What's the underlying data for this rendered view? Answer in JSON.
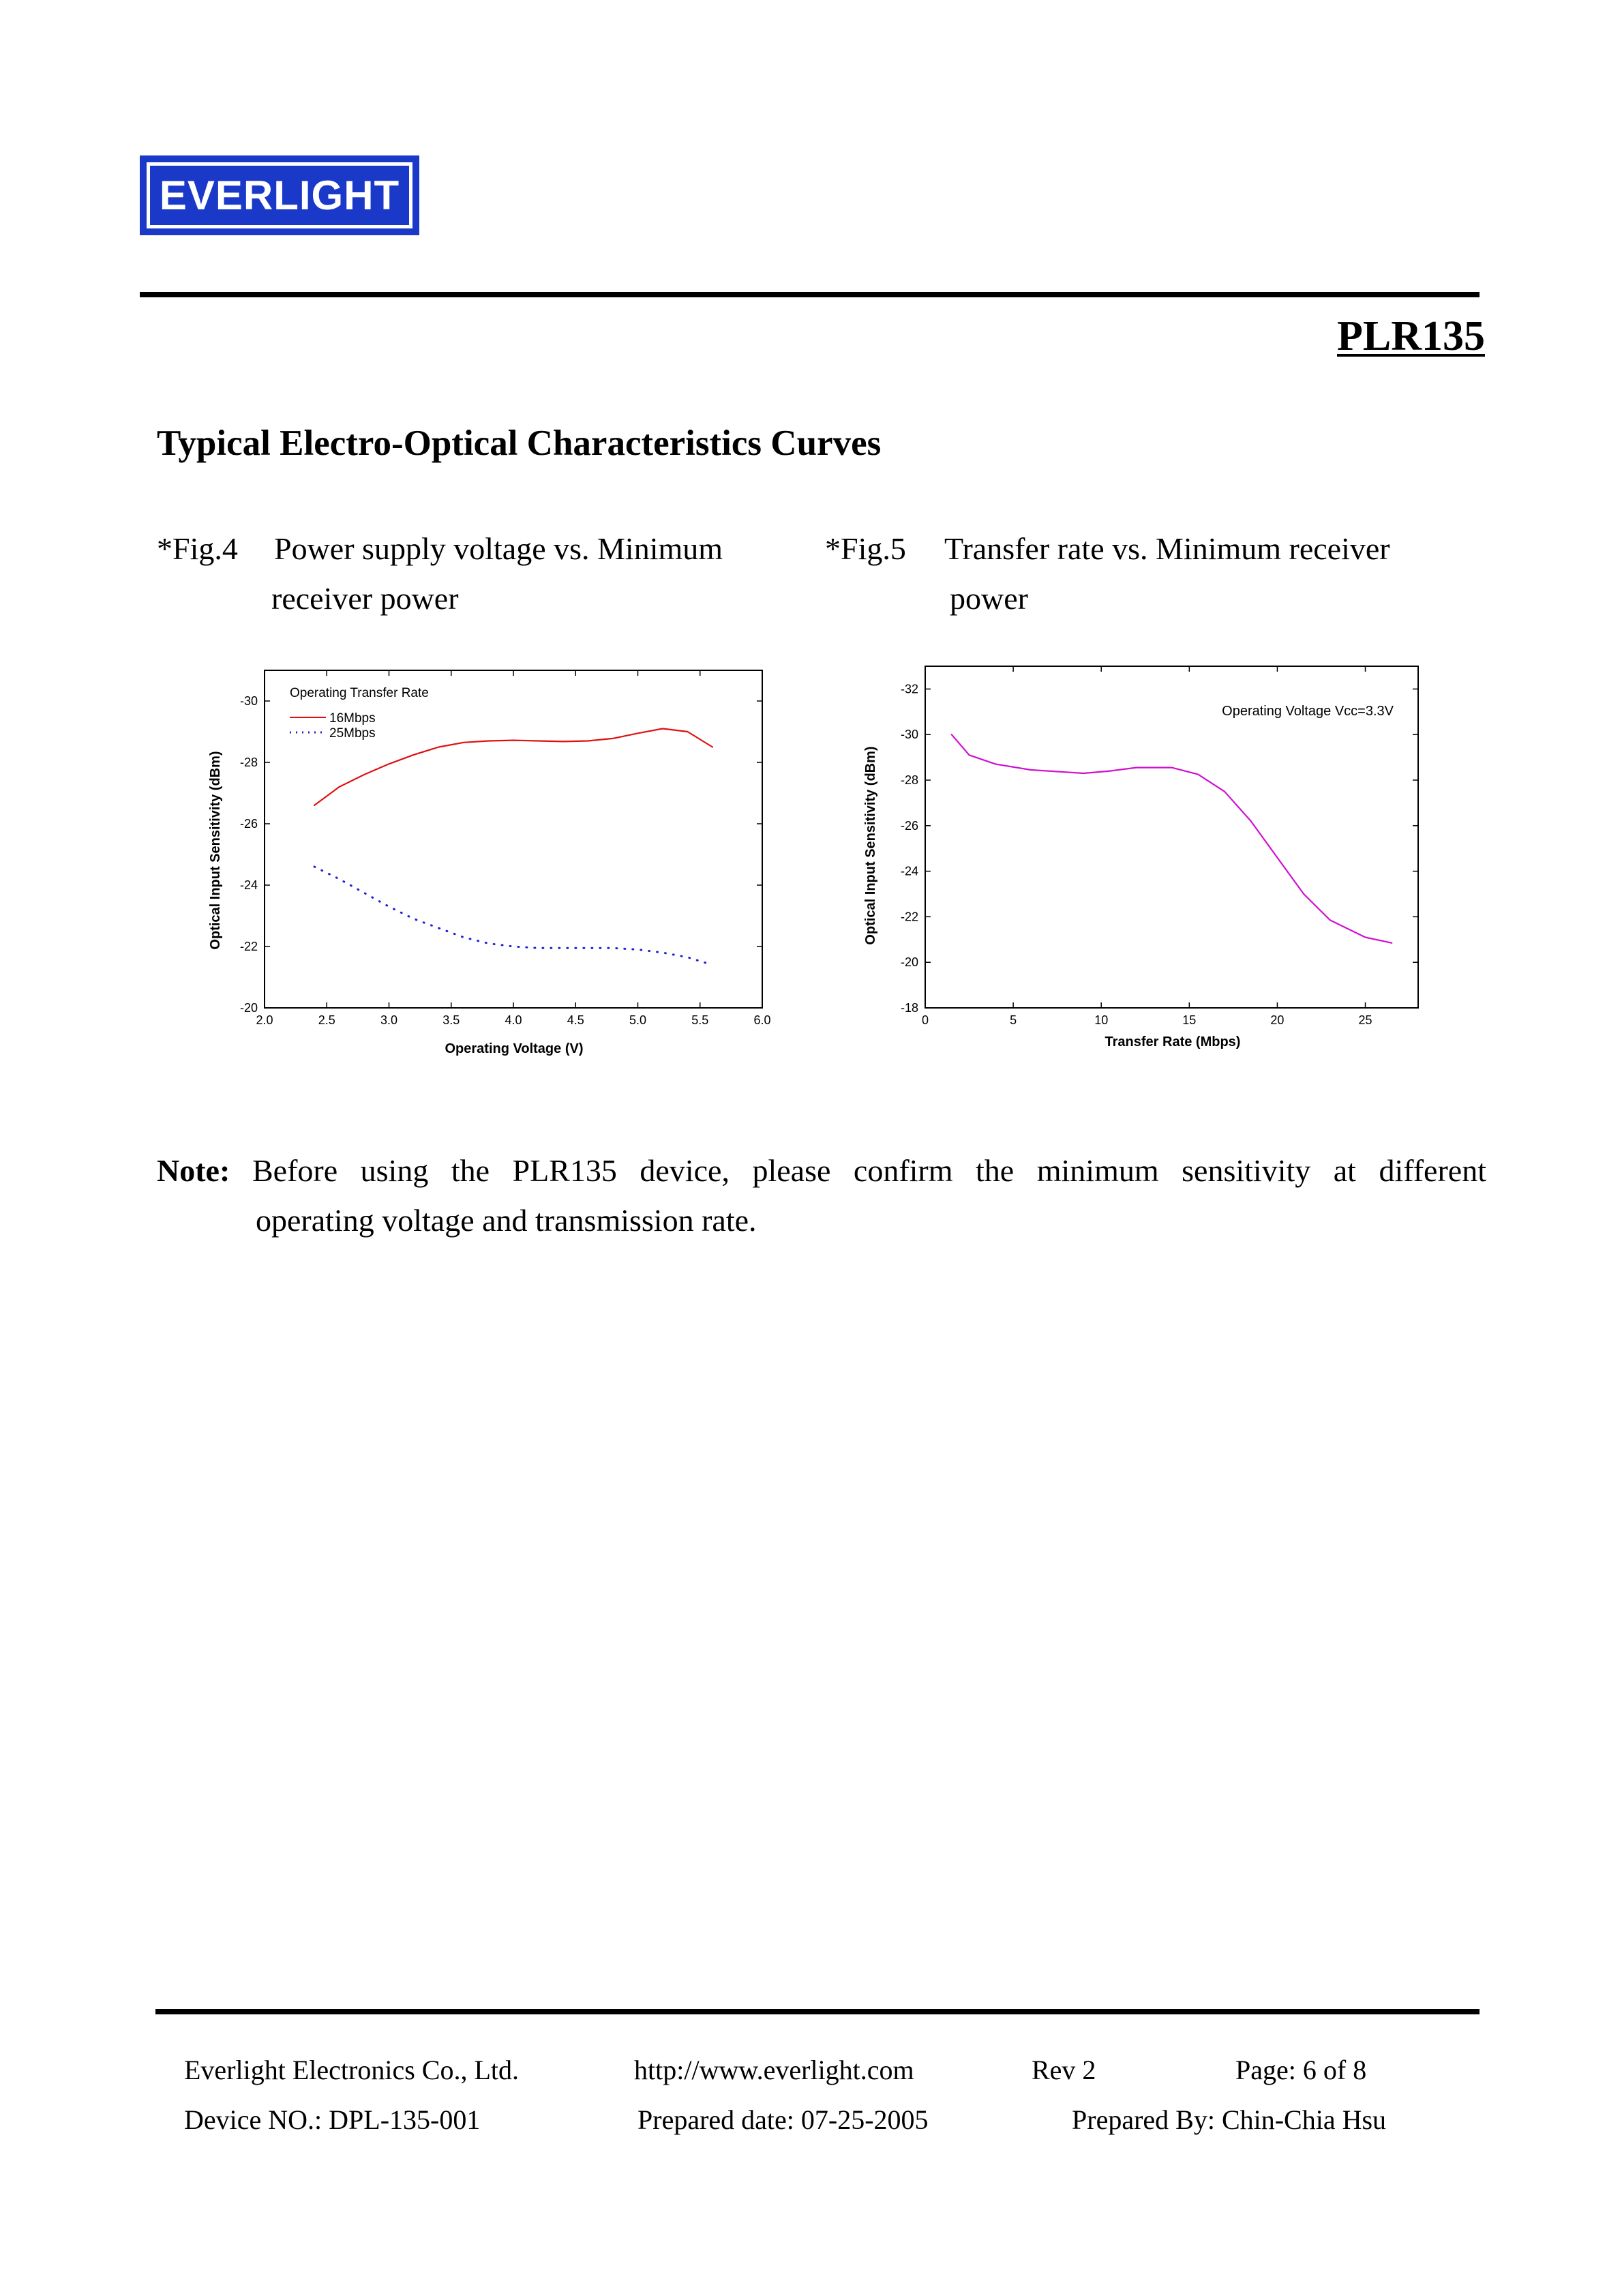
{
  "header": {
    "logo_text": "EVERLIGHT",
    "part_number": "PLR135"
  },
  "section_title": "Typical Electro-Optical Characteristics Curves",
  "fig4": {
    "number": "*Fig.4",
    "caption_line1": "Power supply voltage vs. Minimum",
    "caption_line2": "receiver power"
  },
  "fig5": {
    "number": "*Fig.5",
    "caption_line1": "Transfer rate vs. Minimum receiver",
    "caption_line2": "power"
  },
  "chart_data": [
    {
      "type": "line",
      "xlabel": "Operating Voltage (V)",
      "ylabel": "Optical Input Sensitivity (dBm)",
      "xlim": [
        2.0,
        6.0
      ],
      "ylim": [
        -20,
        -31
      ],
      "x_ticks": [
        "2.0",
        "2.5",
        "3.0",
        "3.5",
        "4.0",
        "4.5",
        "5.0",
        "5.5",
        "6.0"
      ],
      "y_ticks": [
        "-20",
        "-22",
        "-24",
        "-26",
        "-28",
        "-30"
      ],
      "legend_title": "Operating Transfer Rate",
      "legend_position": "top-left",
      "series": [
        {
          "name": "16Mbps",
          "color": "#e01010",
          "style": "solid",
          "points": [
            [
              2.4,
              -26.6
            ],
            [
              2.6,
              -27.2
            ],
            [
              2.8,
              -27.6
            ],
            [
              3.0,
              -27.95
            ],
            [
              3.2,
              -28.25
            ],
            [
              3.4,
              -28.5
            ],
            [
              3.6,
              -28.65
            ],
            [
              3.8,
              -28.7
            ],
            [
              4.0,
              -28.72
            ],
            [
              4.2,
              -28.7
            ],
            [
              4.4,
              -28.68
            ],
            [
              4.6,
              -28.7
            ],
            [
              4.8,
              -28.78
            ],
            [
              5.0,
              -28.95
            ],
            [
              5.2,
              -29.1
            ],
            [
              5.4,
              -29.0
            ],
            [
              5.6,
              -28.5
            ]
          ]
        },
        {
          "name": "25Mbps",
          "color": "#2020d0",
          "style": "dotted",
          "points": [
            [
              2.4,
              -24.6
            ],
            [
              2.6,
              -24.2
            ],
            [
              2.8,
              -23.75
            ],
            [
              3.0,
              -23.3
            ],
            [
              3.2,
              -22.9
            ],
            [
              3.4,
              -22.6
            ],
            [
              3.6,
              -22.3
            ],
            [
              3.8,
              -22.1
            ],
            [
              4.0,
              -22.0
            ],
            [
              4.2,
              -21.95
            ],
            [
              4.4,
              -21.95
            ],
            [
              4.6,
              -21.95
            ],
            [
              4.8,
              -21.95
            ],
            [
              5.0,
              -21.9
            ],
            [
              5.2,
              -21.8
            ],
            [
              5.4,
              -21.65
            ],
            [
              5.6,
              -21.4
            ]
          ]
        }
      ]
    },
    {
      "type": "line",
      "xlabel": "Transfer Rate (Mbps)",
      "ylabel": "Optical Input Sensitivity (dBm)",
      "xlim": [
        0,
        28
      ],
      "ylim": [
        -18,
        -33
      ],
      "x_ticks": [
        "0",
        "5",
        "10",
        "15",
        "20",
        "25"
      ],
      "y_ticks": [
        "-18",
        "-20",
        "-22",
        "-24",
        "-26",
        "-28",
        "-30",
        "-32"
      ],
      "annotation": "Operating Voltage Vcc=3.3V",
      "series": [
        {
          "color": "#d010d0",
          "style": "solid",
          "points": [
            [
              1.5,
              -30.0
            ],
            [
              2.5,
              -29.1
            ],
            [
              4,
              -28.7
            ],
            [
              6,
              -28.45
            ],
            [
              8,
              -28.35
            ],
            [
              9,
              -28.3
            ],
            [
              10.5,
              -28.4
            ],
            [
              12,
              -28.55
            ],
            [
              14,
              -28.55
            ],
            [
              15.5,
              -28.25
            ],
            [
              17,
              -27.5
            ],
            [
              18.5,
              -26.2
            ],
            [
              20,
              -24.6
            ],
            [
              21.5,
              -23.0
            ],
            [
              23,
              -21.85
            ],
            [
              25,
              -21.1
            ],
            [
              26.5,
              -20.85
            ]
          ]
        }
      ]
    }
  ],
  "note": {
    "label": "Note:",
    "line1": "Before using the PLR135 device, please confirm the minimum sensitivity at different",
    "line2": "operating voltage and transmission rate."
  },
  "footer": {
    "company": "Everlight Electronics Co., Ltd.",
    "website": "http://www.everlight.com",
    "revision": "Rev 2",
    "page": "Page: 6 of 8",
    "device_no": "Device NO.: DPL-135-001",
    "prepared_date": "Prepared date: 07-25-2005",
    "prepared_by": "Prepared By: Chin-Chia Hsu"
  }
}
